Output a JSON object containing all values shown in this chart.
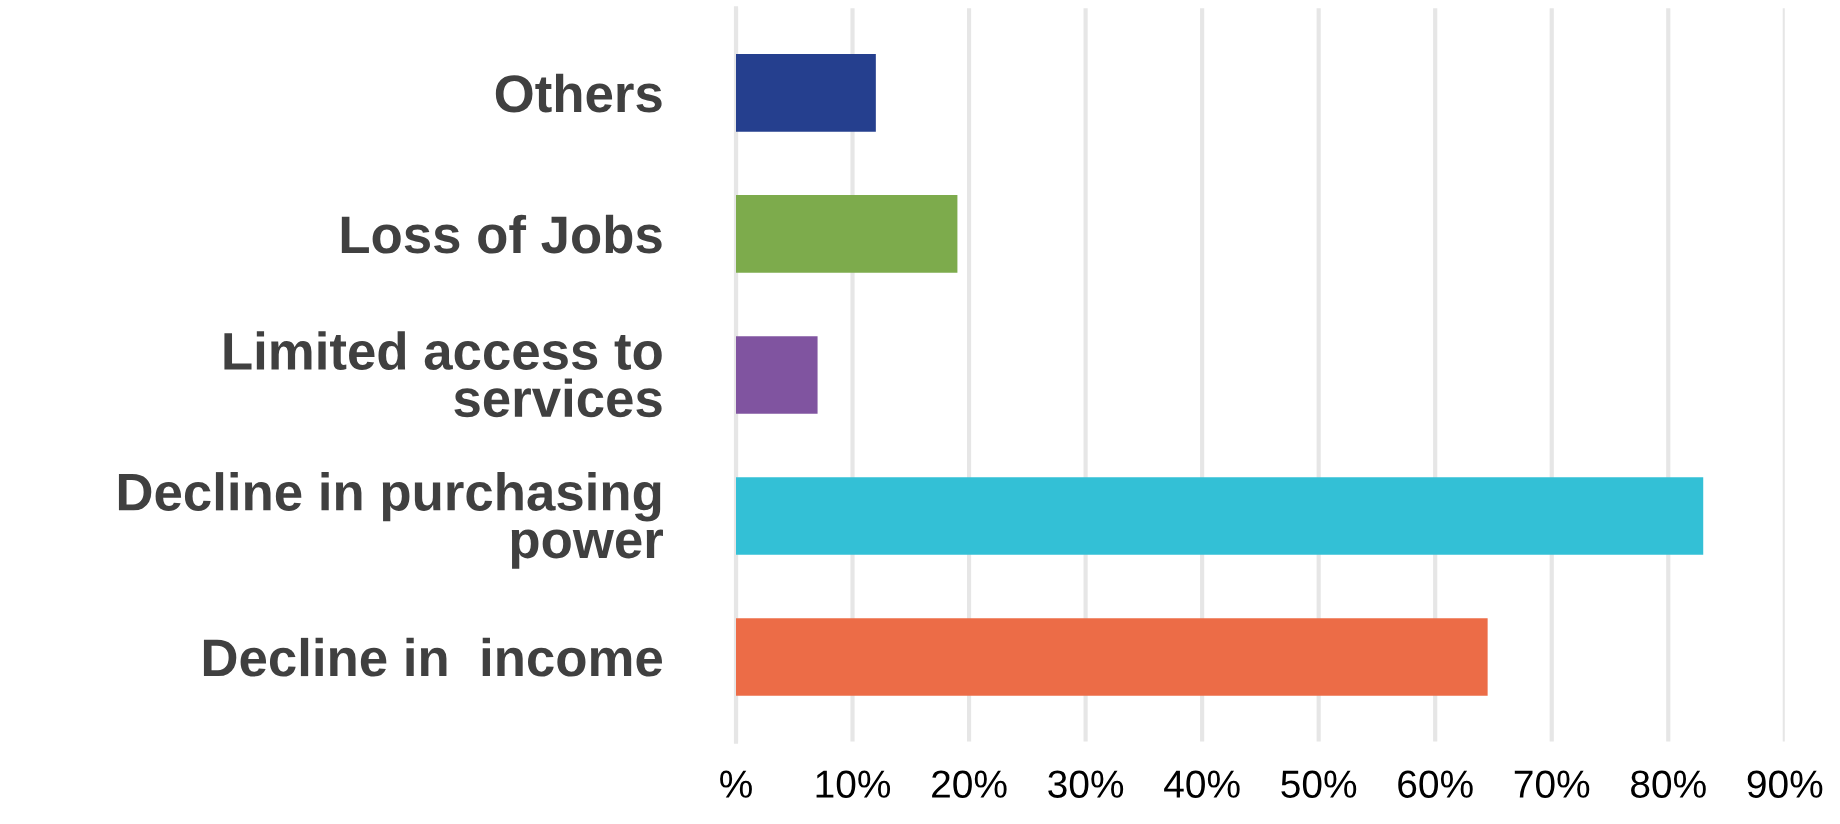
{
  "chart_data": {
    "type": "bar",
    "orientation": "horizontal",
    "categories": [
      "Others",
      "Loss of Jobs",
      "Limited access to\nservices",
      "Decline in purchasing\npower",
      "Decline in  income"
    ],
    "values": [
      12,
      19,
      7,
      83,
      64.5
    ],
    "colors": [
      "#253f8e",
      "#7dab4c",
      "#8054a0",
      "#33c0d6",
      "#ec6c47"
    ],
    "xlim": [
      0,
      90
    ],
    "xticks": [
      {
        "value": 0,
        "label": "%"
      },
      {
        "value": 10,
        "label": "10%"
      },
      {
        "value": 20,
        "label": "20%"
      },
      {
        "value": 30,
        "label": "30%"
      },
      {
        "value": 40,
        "label": "40%"
      },
      {
        "value": 50,
        "label": "50%"
      },
      {
        "value": 60,
        "label": "60%"
      },
      {
        "value": 70,
        "label": "70%"
      },
      {
        "value": 80,
        "label": "80%"
      },
      {
        "value": 90,
        "label": "90%"
      }
    ],
    "grid": "x"
  }
}
